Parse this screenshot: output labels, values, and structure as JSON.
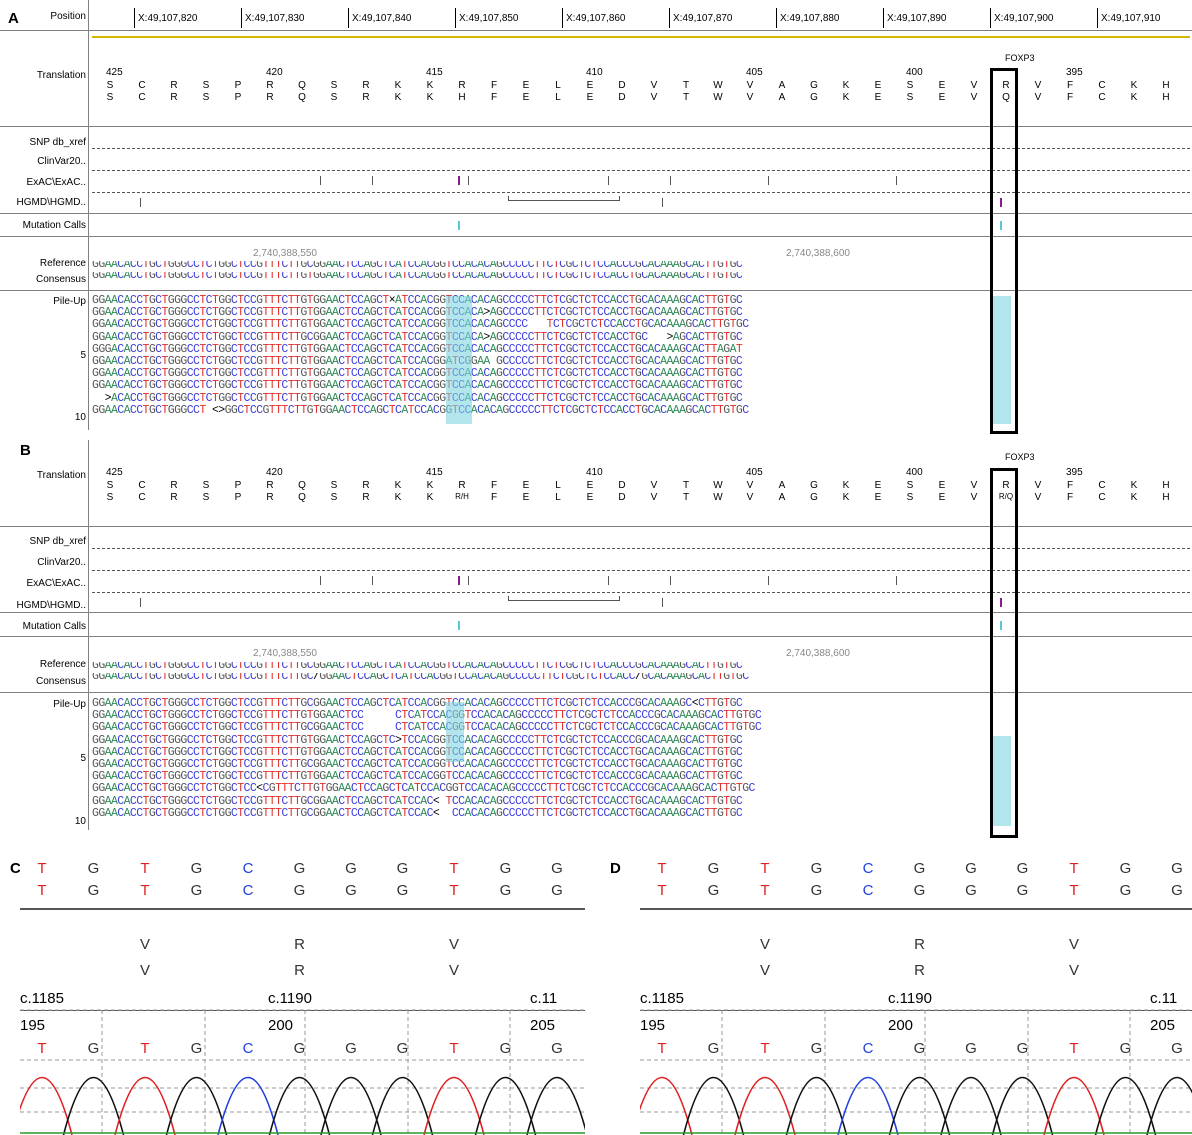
{
  "panels": {
    "A": {
      "letter": "A",
      "lane_labels": {
        "position": "Position",
        "translation": "Translation",
        "snp_db": "SNP db_xref",
        "clinvar": "ClinVar20..",
        "exac": "ExAC\\ExAC..",
        "hgmd": "HGMD\\HGMD..",
        "mutation_calls": "Mutation Calls",
        "reference": "Reference",
        "consensus": "Consensus",
        "pileup": "Pile-Up",
        "row5": "5",
        "row10": "10"
      },
      "positions": [
        "X:49,107,820",
        "X:49,107,830",
        "X:49,107,840",
        "X:49,107,850",
        "X:49,107,860",
        "X:49,107,870",
        "X:49,107,880",
        "X:49,107,890",
        "X:49,107,900",
        "X:49,107,910"
      ],
      "gene": "FOXP3",
      "aa_numbers": [
        "425",
        "420",
        "415",
        "410",
        "405",
        "400",
        "395"
      ],
      "aa_row1": [
        "S",
        "C",
        "R",
        "S",
        "P",
        "R",
        "Q",
        "S",
        "R",
        "K",
        "K",
        "R",
        "F",
        "E",
        "L",
        "E",
        "D",
        "V",
        "T",
        "W",
        "V",
        "A",
        "G",
        "K",
        "E",
        "S",
        "E",
        "V",
        "R",
        "V",
        "F",
        "C",
        "K",
        "H"
      ],
      "aa_row2": [
        "S",
        "C",
        "R",
        "S",
        "P",
        "R",
        "Q",
        "S",
        "R",
        "K",
        "K",
        "H",
        "F",
        "E",
        "L",
        "E",
        "D",
        "V",
        "T",
        "W",
        "V",
        "A",
        "G",
        "K",
        "E",
        "S",
        "E",
        "V",
        "Q",
        "V",
        "F",
        "C",
        "K",
        "H"
      ],
      "coords": [
        "2,740,388,550",
        "2,740,388,600"
      ],
      "reference": "GGAACACCTGCTGGGCCTCTGGCTCCGTTTCTTGCGGAACTCCAGCTCATCCACGGTCCACACAGCCCCCTTCTCGCTCTCCACCCGCACAAAGCACTTGTGC",
      "consensus": "GGAACACCTGCTGGGCCTCTGGCTCCGTTTCTTGTGGAACTCCAGCTCATCCACGGTCCACACAGCCCCCTTCTCGCTCTCCACCTGCACAAAGCACTTGTGC",
      "pileup": [
        "GGAACACCTGCTGGGCCTCTGGCTCCGTTTCTTGTGGAACTCCAGCT×ATCCACGGTCCACACAGCCCCCTTCTCGCTCTCCACCTGCACAAAGCACTTGTGC",
        "GGAACACCTGCTGGGCCTCTGGCTCCGTTTCTTGTGGAACTCCAGCTCATCCACGGTCCACA>AGCCCCCTTCTCGCTCTCCACCTGCACAAAGCACTTGTGC",
        "GGAACACCTGCTGGGCCTCTGGCTCCGTTTCTTGTGGAACTCCAGCTCATCCACGGTCCACACAGCCCC   TCTCGCTCTCCACCTGCACAAAGCACTTGTGC",
        "GGAACACCTGCTGGGCCTCTGGCTCCGTTTCTTGCGGAACTCCAGCTCATCCACGGTCCACA>AGCCCCCTTCTCGCTCTCCACCTGC   >AGCACTTGTGC",
        "GGGACACCTGCTGGGCCTCTGGCTCCGTTTCTTGTGGAACTCCAGCTCATCCACGGTCCACACAGCCCCCTTCTCGCTCTCCACCTGCACAAAGCACTTAGAT",
        "GGAACACCTGCTGGGCCTCTGGCTCCGTTTCTTGTGGAACTCCAGCTCATCCACGGATCGGAA GCCCCCTTCTCGCTCTCCACCTGCACAAAGCACTTGTGC",
        "GGAACACCTGCTGGGCCTCTGGCTCCGTTTCTTGTGGAACTCCAGCTCATCCACGGTCCACACAGCCCCCTTCTCGCTCTCCACCTGCACAAAGCACTTGTGC",
        "GGAACACCTGCTGGGCCTCTGGCTCCGTTTCTTGTGGAACTCCAGCTCATCCACGGTCCACACAGCCCCCTTCTCGCTCTCCACCTGCACAAAGCACTTGTGC",
        "  >ACACCTGCTGGGCCTCTGGCTCCGTTTCTTGTGGAACTCCAGCTCATCCACGGTCCACACAGCCCCCTTCTCGCTCTCCACCTGCACAAAGCACTTGTGC",
        "GGAACACCTGCTGGGCCT <>GGCTCCGTTTCTTGTGGAACTCCAGCTCATCCACGGTCCACACAGCCCCCTTCTCGCTCTCCACCTGCACAAAGCACTTGTGC"
      ]
    },
    "B": {
      "letter": "B",
      "aa_row1": [
        "S",
        "C",
        "R",
        "S",
        "P",
        "R",
        "Q",
        "S",
        "R",
        "K",
        "K",
        "R",
        "F",
        "E",
        "L",
        "E",
        "D",
        "V",
        "T",
        "W",
        "V",
        "A",
        "G",
        "K",
        "E",
        "S",
        "E",
        "V",
        "R",
        "V",
        "F",
        "C",
        "K",
        "H"
      ],
      "aa_row2": [
        "S",
        "C",
        "R",
        "S",
        "P",
        "R",
        "Q",
        "S",
        "R",
        "K",
        "K",
        "R/H",
        "F",
        "E",
        "L",
        "E",
        "D",
        "V",
        "T",
        "W",
        "V",
        "A",
        "G",
        "K",
        "E",
        "S",
        "E",
        "V",
        "R/Q",
        "V",
        "F",
        "C",
        "K",
        "H"
      ],
      "reference": "GGAACACCTGCTGGGCCTCTGGCTCCGTTTCTTGCGGAACTCCAGCTCATCCACGGTCCACACAGCCCCCTTCTCGCTCTCCACCCGCACAAAGCACTTGTGC",
      "consensus": "GGAACACCTGCTGGGCCTCTGGCTCCGTTTCTTGC/GGAACTCCAGCTCATCCACGGTCCACACAGCCCCCTTCTCGCTCTCCACC/GCACAAAGCACTTGTGC",
      "pileup": [
        "GGAACACCTGCTGGGCCTCTGGCTCCGTTTCTTGCGGAACTCCAGCTCATCCACGGTCCACACAGCCCCCTTCTCGCTCTCCACCCGCACAAAGC<CTTGTGC",
        "GGAACACCTGCTGGGCCTCTGGCTCCGTTTCTTGTGGAACTCC     CTCATCCACGGTCCACACAGCCCCCTTCTCGCTCTCCACCCGCACAAAGCACTTGTGC",
        "GGAACACCTGCTGGGCCTCTGGCTCCGTTTCTTGCGGAACTCC     CTCATCCACGGTCCACACAGCCCCCTTCTCGCTCTCCACCCGCACAAAGCACTTGTGC",
        "GGAACACCTGCTGGGCCTCTGGCTCCGTTTCTTGTGGAACTCCAGCTC>TCCACGGTCCACACAGCCCCCTTCTCGCTCTCCACCCGCACAAAGCACTTGTGC",
        "GGAACACCTGCTGGGCCTCTGGCTCCGTTTCTTGTGGAACTCCAGCTCATCCACGGTCCACACAGCCCCCTTCTCGCTCTCCACCTGCACAAAGCACTTGTGC",
        "GGAACACCTGCTGGGCCTCTGGCTCCGTTTCTTGCGGAACTCCAGCTCATCCACGGTCCACACAGCCCCCTTCTCGCTCTCCACCTGCACAAAGCACTTGTGC",
        "GGAACACCTGCTGGGCCTCTGGCTCCGTTTCTTGTGGAACTCCAGCTCATCCACGGTCCACACAGCCCCCTTCTCGCTCTCCACCCGCACAAAGCACTTGTGC",
        "GGAACACCTGCTGGGCCTCTGGCTCC<CGTTTCTTGTGGAACTCCAGCTCATCCACGGTCCACACAGCCCCCTTCTCGCTCTCCACCCGCACAAAGCACTTGTGC",
        "GGAACACCTGCTGGGCCTCTGGCTCCGTTTCTTGCGGAACTCCAGCTCATCCAC< TCCACACAGCCCCCTTCTCGCTCTCCACCTGCACAAAGCACTTGTGC",
        "GGAACACCTGCTGGGCCTCTGGCTCCGTTTCTTGCGGAACTCCAGCTCATCCAC<  CCACACAGCCCCCTTCTCGCTCTCCACCTGCACAAAGCACTTGTGC"
      ]
    },
    "C": {
      "letter": "C",
      "bases_top1": [
        "T",
        "G",
        "T",
        "G",
        "C",
        "G",
        "G",
        "G",
        "T",
        "G",
        "G"
      ],
      "bases_top2": [
        "T",
        "G",
        "T",
        "G",
        "C",
        "G",
        "G",
        "G",
        "T",
        "G",
        "G"
      ],
      "aa1": [
        "V",
        "R",
        "V"
      ],
      "aa2": [
        "V",
        "R",
        "V"
      ],
      "cdna": [
        "c.1185",
        "c.1190",
        "c.11"
      ],
      "scan": [
        "195",
        "200",
        "205"
      ],
      "calls": [
        "T",
        "G",
        "T",
        "G",
        "C",
        "G",
        "G",
        "G",
        "T",
        "G",
        "G"
      ]
    },
    "D": {
      "letter": "D",
      "bases_top1": [
        "T",
        "G",
        "T",
        "G",
        "C",
        "G",
        "G",
        "G",
        "T",
        "G",
        "G"
      ],
      "bases_top2": [
        "T",
        "G",
        "T",
        "G",
        "C",
        "G",
        "G",
        "G",
        "T",
        "G",
        "G"
      ],
      "aa1": [
        "V",
        "R",
        "V"
      ],
      "aa2": [
        "V",
        "R",
        "V"
      ],
      "cdna": [
        "c.1185",
        "c.1190",
        "c.11"
      ],
      "scan": [
        "195",
        "200",
        "205"
      ],
      "calls": [
        "T",
        "G",
        "T",
        "G",
        "C",
        "G",
        "G",
        "G",
        "T",
        "G",
        "G"
      ]
    }
  },
  "colors": {
    "A": "#2e8b57",
    "C": "#3b3bd8",
    "G": "#555555",
    "T": "#e0302d",
    "highlight": "#7fd4e0"
  }
}
